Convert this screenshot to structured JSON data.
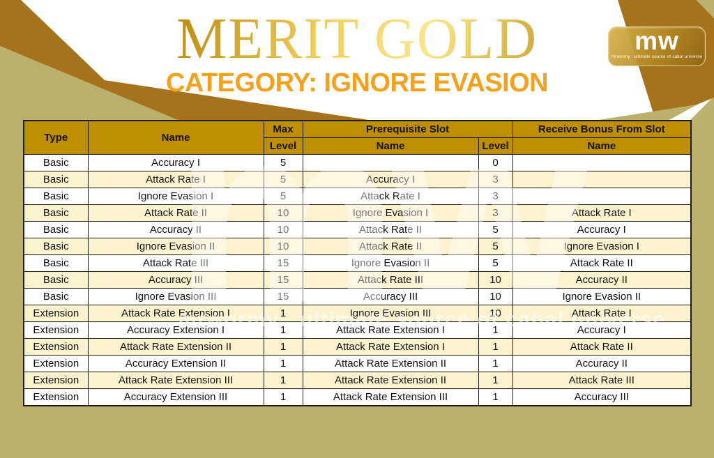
{
  "page": {
    "title": "MERIT GOLD",
    "subtitle": "CATEGORY: IGNORE EVASION"
  },
  "logo": {
    "text": "mw",
    "tagline": "mrwormy : ultimate source of cabal universe"
  },
  "watermark": {
    "big_text": "mw",
    "line_text": "mrwormy . ultimate source of cabal universe"
  },
  "colors": {
    "header_gold": "#BE8F00",
    "row_cream": "#FCF2CE",
    "row_white": "#FFFFFF",
    "stripe_brown": "#A6731D",
    "corner_khaki": "#BBB16C",
    "subtitle_orange": "#F5A11C",
    "title_gold": "#D4A017",
    "border_black": "#1B1B1B"
  },
  "table": {
    "headers": {
      "type": "Type",
      "name": "Name",
      "max_level_line1": "Max",
      "max_level_line2": "Level",
      "prerequisite_slot": "Prerequisite Slot",
      "prerequisite_name": "Name",
      "prerequisite_level": "Level",
      "receive_bonus": "Receive Bonus From Slot",
      "receive_bonus_name": "Name"
    },
    "rows": [
      [
        "Basic",
        "Accuracy I",
        "5",
        "",
        "0",
        ""
      ],
      [
        "Basic",
        "Attack Rate I",
        "5",
        "Accuracy I",
        "3",
        ""
      ],
      [
        "Basic",
        "Ignore Evasion I",
        "5",
        "Attack Rate I",
        "3",
        ""
      ],
      [
        "Basic",
        "Attack Rate II",
        "10",
        "Ignore Evasion I",
        "3",
        "Attack Rate I"
      ],
      [
        "Basic",
        "Accuracy II",
        "10",
        "Attack Rate II",
        "5",
        "Accuracy I"
      ],
      [
        "Basic",
        "Ignore Evasion II",
        "10",
        "Attack Rate II",
        "5",
        "Ignore Evasion I"
      ],
      [
        "Basic",
        "Attack Rate III",
        "15",
        "Ignore Evasion II",
        "5",
        "Attack Rate II"
      ],
      [
        "Basic",
        "Accuracy III",
        "15",
        "Attack Rate III",
        "10",
        "Accuracy II"
      ],
      [
        "Basic",
        "Ignore Evasion III",
        "15",
        "Accuracy III",
        "10",
        "Ignore Evasion II"
      ],
      [
        "Extension",
        "Attack Rate Extension I",
        "1",
        "Ignore Evasion III",
        "10",
        "Attack Rate I"
      ],
      [
        "Extension",
        "Accuracy Extension I",
        "1",
        "Attack Rate Extension I",
        "1",
        "Accuracy I"
      ],
      [
        "Extension",
        "Attack Rate Extension II",
        "1",
        "Attack Rate Extension I",
        "1",
        "Attack Rate II"
      ],
      [
        "Extension",
        "Accuracy Extension II",
        "1",
        "Attack Rate Extension II",
        "1",
        "Accuracy II"
      ],
      [
        "Extension",
        "Attack Rate Extension III",
        "1",
        "Attack Rate Extension II",
        "1",
        "Attack Rate III"
      ],
      [
        "Extension",
        "Accuracy Extension III",
        "1",
        "Attack Rate Extension III",
        "1",
        "Accuracy III"
      ]
    ]
  }
}
